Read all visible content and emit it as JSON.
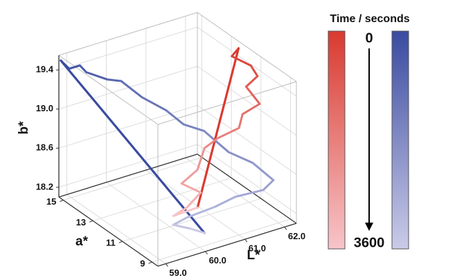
{
  "chart_data": {
    "type": "line3d",
    "xlabel": "L*",
    "ylabel": "a*",
    "zlabel": "b*",
    "xlim": [
      58.8,
      62.3
    ],
    "ylim": [
      8.6,
      15.3
    ],
    "zlim": [
      18.1,
      19.55
    ],
    "xticks": [
      {
        "value": 59,
        "label": "59.0"
      },
      {
        "value": 60,
        "label": "60.0"
      },
      {
        "value": 61,
        "label": "61.0"
      },
      {
        "value": 62,
        "label": "62.0"
      }
    ],
    "yticks": [
      9,
      11,
      13,
      15
    ],
    "zticks": [
      18.2,
      18.6,
      {
        "value": 19,
        "label": "19.0"
      },
      19.4
    ],
    "grid": true,
    "series": [
      {
        "colors": [
          "#3a4ba0",
          "#cbcbe8"
        ],
        "x": [
          58.85,
          59.06,
          59.33,
          59.37,
          59.9,
          60.25,
          60.65,
          61.26,
          61.58,
          61.97,
          62.09,
          62.07,
          62.22,
          62.09,
          61.51,
          60.86,
          60.16,
          59.69,
          59.99,
          60.35
        ],
        "y": [
          15.3,
          15.3,
          15.3,
          14.97,
          14.97,
          14.97,
          14.63,
          14.63,
          14.3,
          13.96,
          12.62,
          10.95,
          9.94,
          10.28,
          10.6,
          10.28,
          10.28,
          9.94,
          9.6,
          9.6
        ],
        "z": [
          19.49,
          19.38,
          19.38,
          19.34,
          19.2,
          19.14,
          18.96,
          18.75,
          18.6,
          18.52,
          18.43,
          18.5,
          18.41,
          18.29,
          18.26,
          18.27,
          18.25,
          18.27,
          18.23,
          18.14
        ]
      },
      {
        "colors": [
          "#d93a2f",
          "#f7c5c9"
        ],
        "x": [
          62.22,
          62.05,
          62.27,
          62.27,
          62.15,
          62.25,
          62.06,
          61.97,
          61.57,
          61.23,
          61.05,
          60.65,
          60.76,
          60.41,
          59.94,
          60.55
        ],
        "y": [
          12.3,
          12.3,
          11.6,
          11.15,
          11.6,
          10.95,
          11.6,
          11.6,
          11.95,
          11.95,
          11.95,
          11.95,
          10.95,
          10.95,
          10.6,
          10.6
        ],
        "z": [
          19.51,
          19.45,
          19.4,
          19.34,
          19.2,
          19.08,
          18.93,
          18.8,
          18.71,
          18.65,
          18.45,
          18.36,
          18.36,
          18.25,
          18.26,
          18.27
        ]
      }
    ],
    "colorbar": {
      "title": "Time / seconds",
      "ticks": [
        0,
        3600
      ]
    }
  }
}
